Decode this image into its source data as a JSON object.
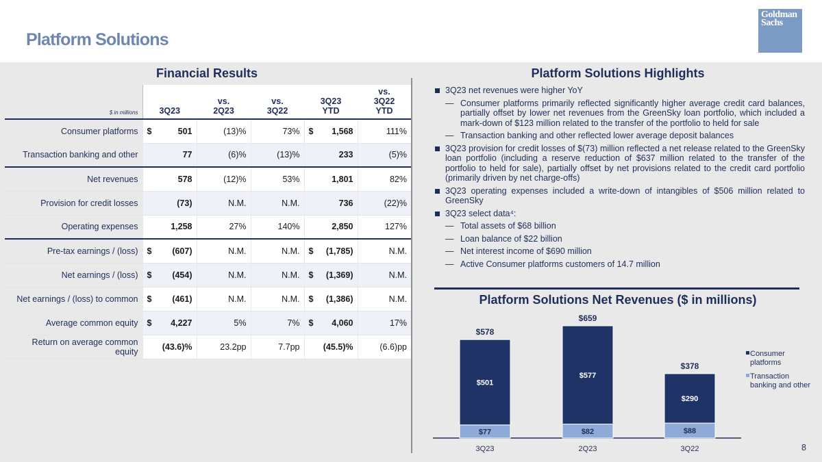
{
  "header": {
    "title": "Platform Solutions",
    "logo_line1": "Goldman",
    "logo_line2": "Sachs"
  },
  "financial": {
    "title": "Financial Results",
    "units": "$ in millions",
    "columns": [
      "3Q23",
      "vs.\n2Q23",
      "vs.\n3Q22",
      "3Q23\nYTD",
      "vs.\n3Q22\nYTD"
    ],
    "rows": [
      {
        "label": "Consumer platforms",
        "d1": "$",
        "v1": "501",
        "v2": "(13)%",
        "v3": "73%",
        "d4": "$",
        "v4": "1,568",
        "v5": "111%"
      },
      {
        "label": "Transaction banking and other",
        "d1": "",
        "v1": "77",
        "v2": "(6)%",
        "v3": "(13)%",
        "d4": "",
        "v4": "233",
        "v5": "(5)%"
      },
      {
        "label": "Net revenues",
        "d1": "",
        "v1": "578",
        "v2": "(12)%",
        "v3": "53%",
        "d4": "",
        "v4": "1,801",
        "v5": "82%"
      },
      {
        "label": "Provision for credit losses",
        "d1": "",
        "v1": "(73)",
        "v2": "N.M.",
        "v3": "N.M.",
        "d4": "",
        "v4": "736",
        "v5": "(22)%"
      },
      {
        "label": "Operating expenses",
        "d1": "",
        "v1": "1,258",
        "v2": "27%",
        "v3": "140%",
        "d4": "",
        "v4": "2,850",
        "v5": "127%"
      },
      {
        "label": "Pre-tax earnings / (loss)",
        "d1": "$",
        "v1": "(607)",
        "v2": "N.M.",
        "v3": "N.M.",
        "d4": "$",
        "v4": "(1,785)",
        "v5": "N.M."
      },
      {
        "label": "Net earnings / (loss)",
        "d1": "$",
        "v1": "(454)",
        "v2": "N.M.",
        "v3": "N.M.",
        "d4": "$",
        "v4": "(1,369)",
        "v5": "N.M."
      },
      {
        "label": "Net earnings / (loss) to common",
        "d1": "$",
        "v1": "(461)",
        "v2": "N.M.",
        "v3": "N.M.",
        "d4": "$",
        "v4": "(1,386)",
        "v5": "N.M."
      },
      {
        "label": "Average common equity",
        "d1": "$",
        "v1": "4,227",
        "v2": "5%",
        "v3": "7%",
        "d4": "$",
        "v4": "4,060",
        "v5": "17%"
      },
      {
        "label": "Return on average common equity",
        "d1": "",
        "v1": "(43.6)%",
        "v2": "23.2pp",
        "v3": "7.7pp",
        "d4": "",
        "v4": "(45.5)%",
        "v5": "(6.6)pp"
      }
    ]
  },
  "highlights": {
    "title": "Platform Solutions Highlights",
    "items": [
      {
        "level": 1,
        "text": "3Q23 net revenues were higher YoY"
      },
      {
        "level": 2,
        "text": "Consumer platforms primarily reflected significantly higher average credit card balances, partially offset by lower net revenues from the GreenSky loan portfolio, which included a mark-down of $123 million related to the transfer of the portfolio to held for sale"
      },
      {
        "level": 2,
        "text": "Transaction banking and other reflected lower average deposit balances"
      },
      {
        "level": 1,
        "text": "3Q23 provision for credit losses of $(73) million reflected a net release related to the GreenSky loan portfolio (including a reserve reduction of $637 million related to the transfer of the portfolio to held for sale), partially offset by net provisions related to the credit card portfolio (primarily driven by net charge-offs)"
      },
      {
        "level": 1,
        "text": "3Q23 operating expenses included a write-down of intangibles of $506 million related to GreenSky"
      },
      {
        "level": 1,
        "text": "3Q23 select data⁴:"
      },
      {
        "level": 2,
        "text": "Total assets of $68 billion"
      },
      {
        "level": 2,
        "text": "Loan balance of $22 billion"
      },
      {
        "level": 2,
        "text": "Net interest income of $690 million"
      },
      {
        "level": 2,
        "text": "Active Consumer platforms customers of 14.7 million"
      }
    ]
  },
  "chart_data": {
    "type": "bar",
    "stacked": true,
    "title": "Platform Solutions Net Revenues ($ in millions)",
    "categories": [
      "3Q23",
      "2Q23",
      "3Q22"
    ],
    "series": [
      {
        "name": "Transaction banking and other",
        "values": [
          77,
          82,
          88
        ],
        "labels": [
          "$77",
          "$82",
          "$88"
        ],
        "color": "#8eaad9"
      },
      {
        "name": "Consumer platforms",
        "values": [
          501,
          577,
          290
        ],
        "labels": [
          "$501",
          "$577",
          "$290"
        ],
        "color": "#1f3366"
      }
    ],
    "totals": [
      578,
      659,
      378
    ],
    "total_labels": [
      "$578",
      "$659",
      "$378"
    ],
    "ylim": [
      0,
      700
    ],
    "legend": [
      "Consumer platforms",
      "Transaction banking and other"
    ],
    "legend_position": "right"
  },
  "footer": {
    "page_number": "8"
  }
}
